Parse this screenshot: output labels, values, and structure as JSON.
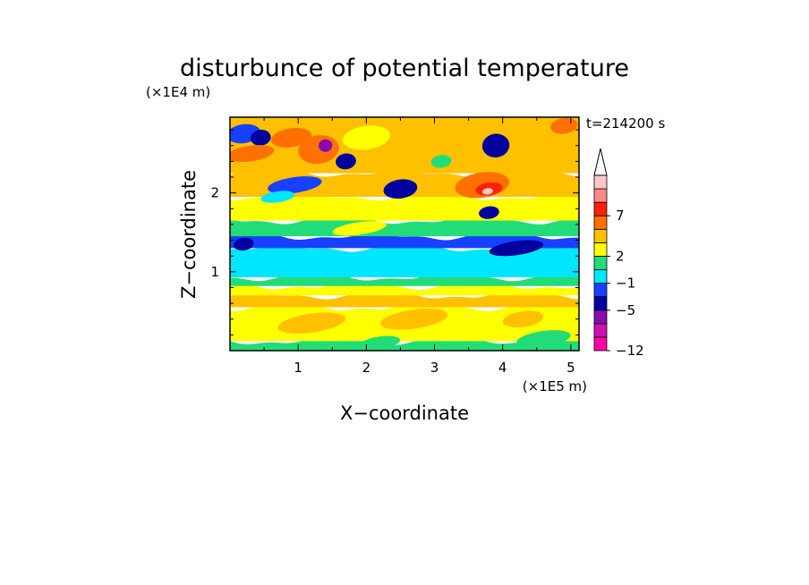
{
  "chart_data": {
    "type": "heatmap",
    "title": "disturbunce of potential temperature",
    "xlabel": "X−coordinate",
    "ylabel": "Z−coordinate",
    "x_unit": "(×1E5 m)",
    "y_unit": "(×1E4 m)",
    "time_label": "t=214200 s",
    "x_ticks": [
      "1",
      "2",
      "3",
      "4",
      "5"
    ],
    "y_ticks": [
      "1",
      "2"
    ],
    "xlim": [
      0,
      5.12
    ],
    "ylim": [
      0,
      2.96
    ],
    "grid": false,
    "legend_position": "right",
    "colorbar": {
      "labels": [
        "−12",
        "−5",
        "−1",
        "2",
        "7"
      ],
      "colors": [
        "#ff00aa",
        "#d010b0",
        "#8a0ab0",
        "#00009e",
        "#1840ff",
        "#00e6ff",
        "#22dd77",
        "#ffff00",
        "#ffc000",
        "#ff7000",
        "#ff2000",
        "#ff8888",
        "#ffc8c8"
      ],
      "extend": "max"
    },
    "bands": [
      {
        "z0": 0.0,
        "z1": 0.12,
        "color": "#22dd77"
      },
      {
        "z0": 0.12,
        "z1": 0.55,
        "color": "#ffff00"
      },
      {
        "z0": 0.55,
        "z1": 0.7,
        "color": "#ffc000"
      },
      {
        "z0": 0.7,
        "z1": 0.82,
        "color": "#ffff00"
      },
      {
        "z0": 0.82,
        "z1": 0.93,
        "color": "#22dd77"
      },
      {
        "z0": 0.93,
        "z1": 1.3,
        "color": "#00e6ff"
      },
      {
        "z0": 1.3,
        "z1": 1.45,
        "color": "#1840ff"
      },
      {
        "z0": 1.45,
        "z1": 1.65,
        "color": "#22dd77"
      },
      {
        "z0": 1.65,
        "z1": 1.95,
        "color": "#ffff00"
      },
      {
        "z0": 1.95,
        "z1": 2.25,
        "color": "#ffc000"
      },
      {
        "z0": 2.25,
        "z1": 2.96,
        "color": "#ffc000"
      }
    ],
    "blobs": [
      {
        "x": 0.2,
        "z": 2.75,
        "rx": 0.25,
        "rz": 0.12,
        "color": "#1840ff"
      },
      {
        "x": 0.45,
        "z": 2.7,
        "rx": 0.15,
        "rz": 0.1,
        "color": "#00009e"
      },
      {
        "x": 0.3,
        "z": 2.5,
        "rx": 0.35,
        "rz": 0.1,
        "color": "#ff7000"
      },
      {
        "x": 0.9,
        "z": 2.7,
        "rx": 0.3,
        "rz": 0.12,
        "color": "#ff7000"
      },
      {
        "x": 0.95,
        "z": 2.1,
        "rx": 0.4,
        "rz": 0.1,
        "color": "#1840ff"
      },
      {
        "x": 1.3,
        "z": 2.55,
        "rx": 0.3,
        "rz": 0.18,
        "color": "#ff7000"
      },
      {
        "x": 1.4,
        "z": 2.6,
        "rx": 0.1,
        "rz": 0.08,
        "color": "#8a0ab0"
      },
      {
        "x": 1.7,
        "z": 2.4,
        "rx": 0.15,
        "rz": 0.1,
        "color": "#00009e"
      },
      {
        "x": 2.0,
        "z": 2.7,
        "rx": 0.35,
        "rz": 0.15,
        "color": "#ffff00"
      },
      {
        "x": 2.5,
        "z": 2.05,
        "rx": 0.25,
        "rz": 0.12,
        "color": "#00009e"
      },
      {
        "x": 2.6,
        "z": 2.6,
        "rx": 0.3,
        "rz": 0.15,
        "color": "#ffc000"
      },
      {
        "x": 3.3,
        "z": 2.75,
        "rx": 0.3,
        "rz": 0.18,
        "color": "#ffc000"
      },
      {
        "x": 3.1,
        "z": 2.4,
        "rx": 0.15,
        "rz": 0.08,
        "color": "#22dd77"
      },
      {
        "x": 3.7,
        "z": 2.1,
        "rx": 0.4,
        "rz": 0.16,
        "color": "#ff7000"
      },
      {
        "x": 3.8,
        "z": 2.05,
        "rx": 0.2,
        "rz": 0.08,
        "color": "#ff2000"
      },
      {
        "x": 3.78,
        "z": 2.02,
        "rx": 0.08,
        "rz": 0.04,
        "color": "#ffc8c8"
      },
      {
        "x": 3.8,
        "z": 1.75,
        "rx": 0.15,
        "rz": 0.08,
        "color": "#00009e"
      },
      {
        "x": 3.9,
        "z": 2.6,
        "rx": 0.2,
        "rz": 0.15,
        "color": "#00009e"
      },
      {
        "x": 4.6,
        "z": 2.5,
        "rx": 0.4,
        "rz": 0.2,
        "color": "#ffc000"
      },
      {
        "x": 4.9,
        "z": 2.85,
        "rx": 0.2,
        "rz": 0.1,
        "color": "#ff7000"
      },
      {
        "x": 4.2,
        "z": 1.3,
        "rx": 0.4,
        "rz": 0.09,
        "color": "#00009e"
      },
      {
        "x": 0.7,
        "z": 1.95,
        "rx": 0.25,
        "rz": 0.07,
        "color": "#00e6ff"
      },
      {
        "x": 1.9,
        "z": 1.55,
        "rx": 0.4,
        "rz": 0.08,
        "color": "#ffff00"
      },
      {
        "x": 0.2,
        "z": 1.35,
        "rx": 0.15,
        "rz": 0.08,
        "color": "#00009e"
      },
      {
        "x": 1.2,
        "z": 0.35,
        "rx": 0.5,
        "rz": 0.12,
        "color": "#ffc000"
      },
      {
        "x": 2.7,
        "z": 0.4,
        "rx": 0.5,
        "rz": 0.12,
        "color": "#ffc000"
      },
      {
        "x": 2.2,
        "z": 0.1,
        "rx": 0.3,
        "rz": 0.08,
        "color": "#22dd77"
      },
      {
        "x": 4.6,
        "z": 0.15,
        "rx": 0.4,
        "rz": 0.1,
        "color": "#22dd77"
      },
      {
        "x": 4.3,
        "z": 0.4,
        "rx": 0.3,
        "rz": 0.1,
        "color": "#ffc000"
      }
    ]
  }
}
